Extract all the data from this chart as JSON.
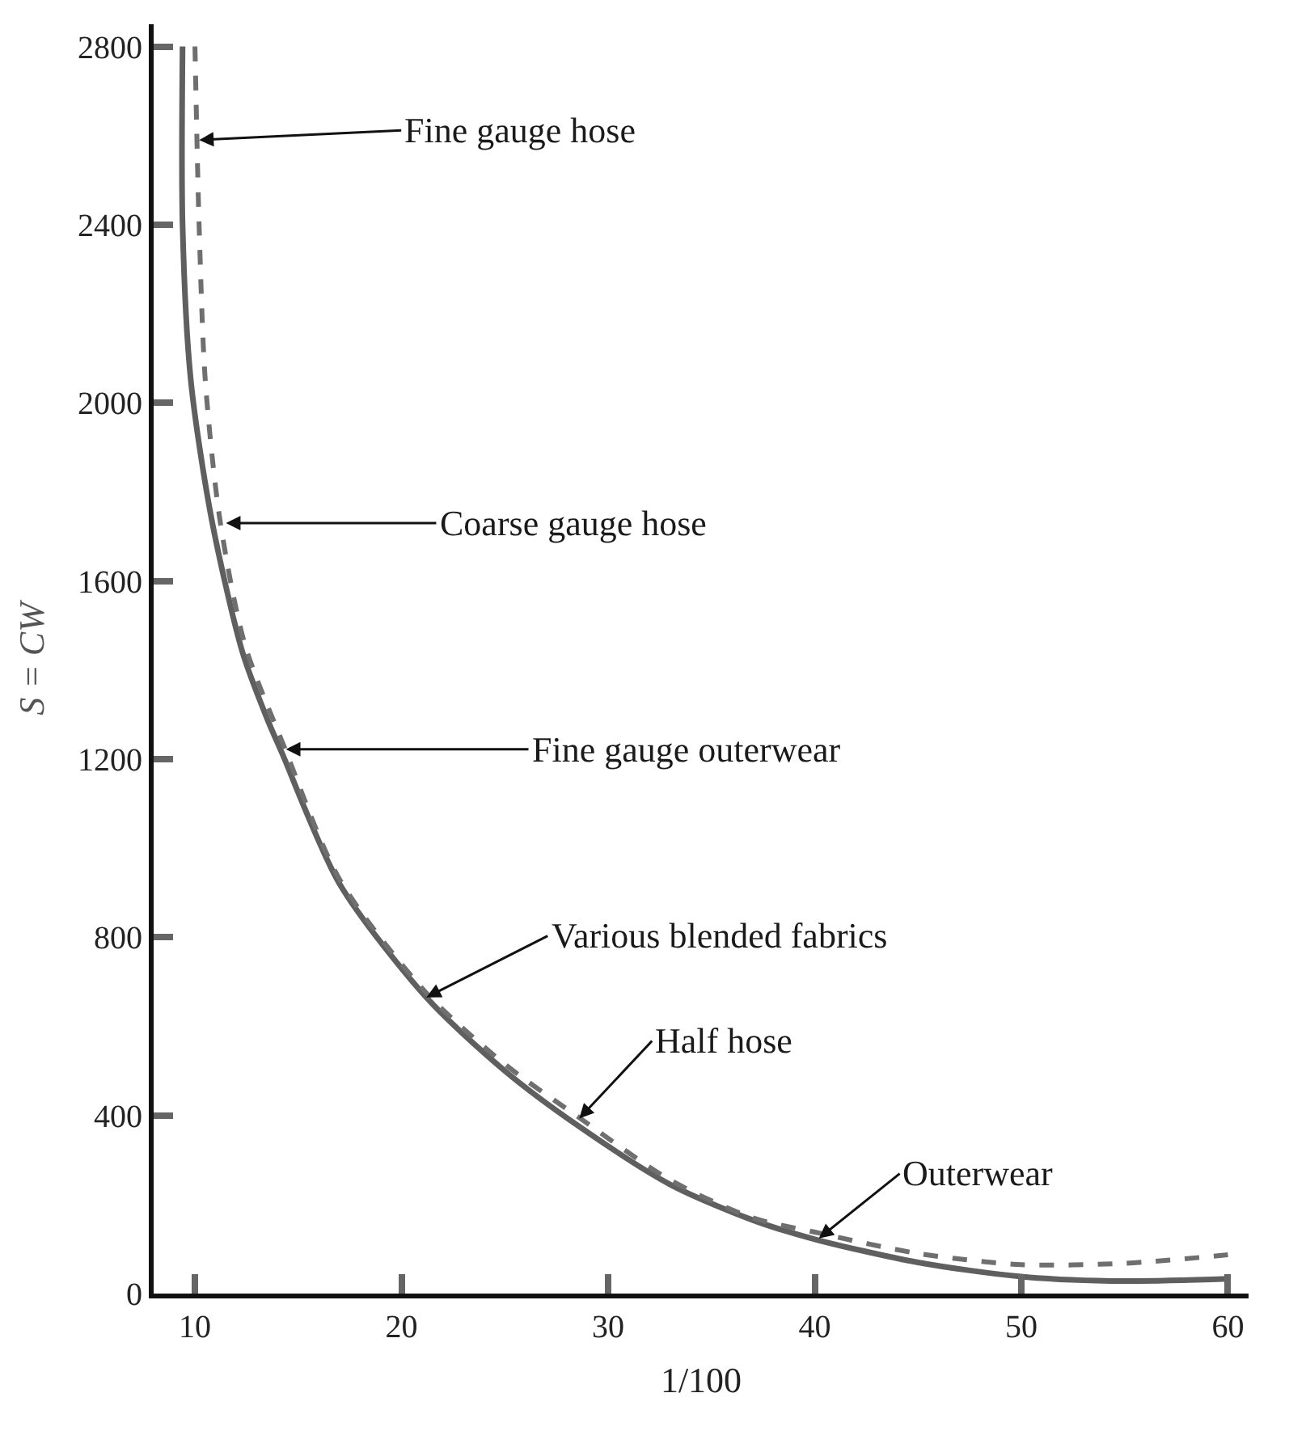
{
  "chart_data": {
    "type": "line",
    "xlabel": "1/100",
    "ylabel": "S = CW",
    "xlim": [
      8,
      61
    ],
    "ylim": [
      0,
      2850
    ],
    "xticks": [
      10,
      20,
      30,
      40,
      50,
      60
    ],
    "yticks": [
      0,
      400,
      800,
      1200,
      1600,
      2000,
      2400,
      2800
    ],
    "marker": "none",
    "series": [
      {
        "color": "#5f5f5f",
        "line_style": "solid",
        "x": [
          9.4,
          9.4,
          9.8,
          10.8,
          12.3,
          13.5,
          14.2,
          17,
          21.2,
          25,
          28.6,
          33,
          37,
          40,
          45,
          50,
          55,
          60
        ],
        "values": [
          2800,
          2400,
          2050,
          1740,
          1440,
          1290,
          1215,
          920,
          665,
          500,
          375,
          245,
          165,
          122,
          70,
          38,
          28,
          33
        ]
      },
      {
        "color": "#6f6f6f",
        "line_style": "dashed",
        "x": [
          10,
          10.2,
          10.5,
          11.2,
          12.4,
          14.3,
          17,
          21.2,
          25,
          28.6,
          33,
          37,
          40,
          45,
          50,
          55,
          60
        ],
        "values": [
          2800,
          2400,
          2050,
          1740,
          1460,
          1230,
          930,
          675,
          515,
          395,
          255,
          170,
          138,
          90,
          65,
          68,
          87
        ]
      }
    ],
    "annotations": [
      {
        "text": "Fine gauge hose",
        "x": 10.2,
        "y": 2590
      },
      {
        "text": "Coarse gauge hose",
        "x": 11.5,
        "y": 1730
      },
      {
        "text": "Fine gauge outerwear",
        "x": 14.4,
        "y": 1222
      },
      {
        "text": "Various blended fabrics",
        "x": 21.2,
        "y": 665
      },
      {
        "text": "Half hose",
        "x": 28.6,
        "y": 393
      },
      {
        "text": "Outerwear",
        "x": 40.2,
        "y": 124
      }
    ]
  }
}
